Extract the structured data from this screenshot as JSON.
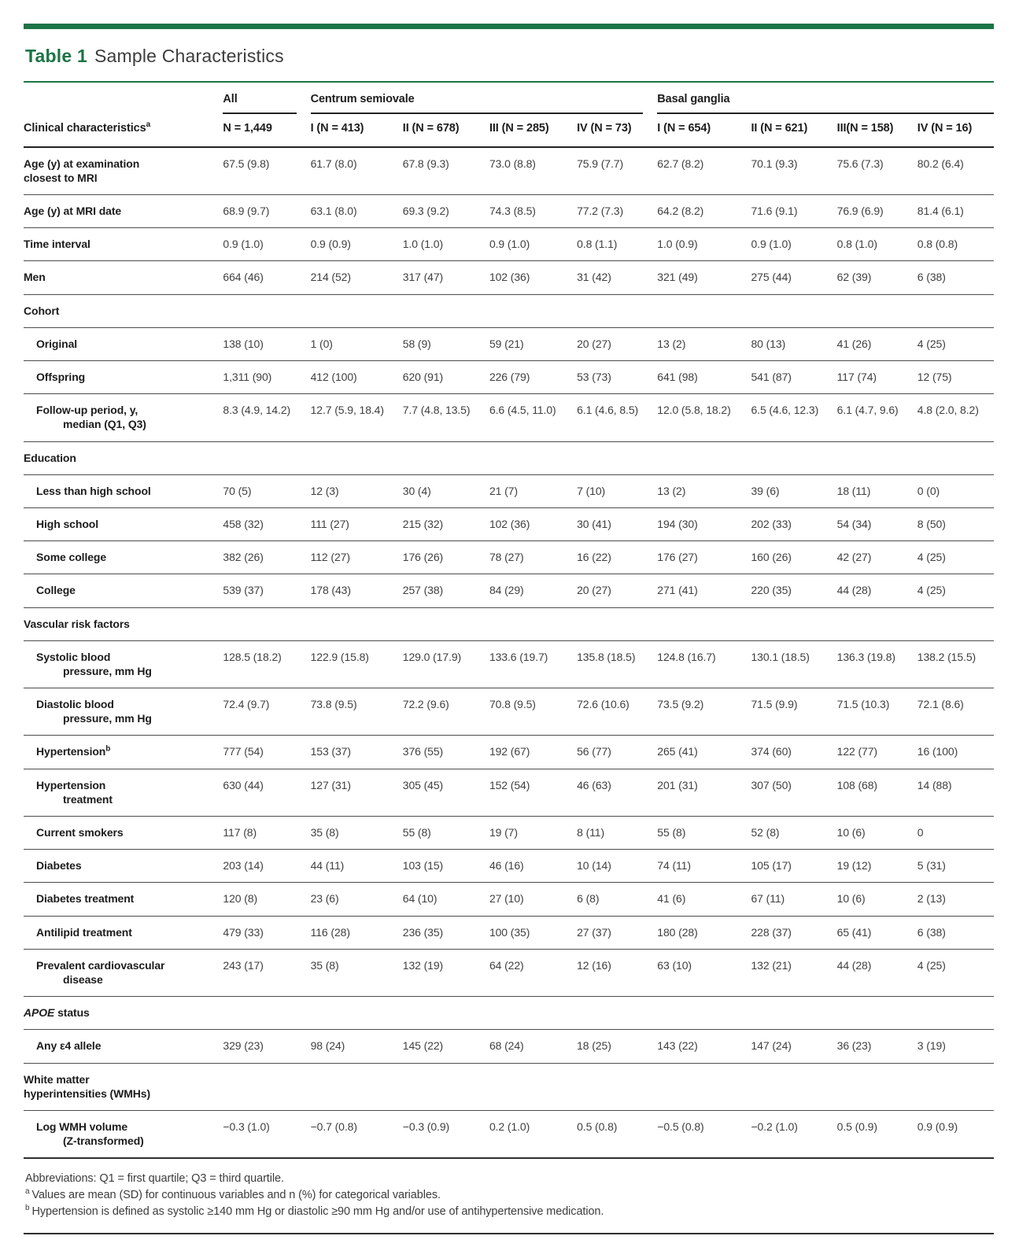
{
  "accent_color": "#1d7446",
  "table_label": "Table 1",
  "table_title": "Sample Characteristics",
  "header": {
    "stub_label": "Clinical characteristics",
    "stub_sup": "a",
    "groups": [
      {
        "label": "All",
        "cols": 1
      },
      {
        "label": "Centrum semiovale",
        "cols": 4
      },
      {
        "label": "Basal ganglia",
        "cols": 4
      }
    ],
    "columns": [
      "N = 1,449",
      "I (N = 413)",
      "II (N = 678)",
      "III (N = 285)",
      "IV (N = 73)",
      "I (N = 654)",
      "II (N = 621)",
      "III(N = 158)",
      "IV (N = 16)"
    ]
  },
  "rows": [
    {
      "type": "data",
      "indent": false,
      "label": "Age (y) at examination\ncloset to MRI",
      "label_fixed": "Age (y) at examination\nclosest to MRI",
      "values": [
        "67.5 (9.8)",
        "61.7 (8.0)",
        "67.8 (9.3)",
        "73.0 (8.8)",
        "75.9 (7.7)",
        "62.7 (8.2)",
        "70.1 (9.3)",
        "75.6 (7.3)",
        "80.2 (6.4)"
      ]
    },
    {
      "type": "data",
      "indent": false,
      "label": "Age (y) at MRI date",
      "values": [
        "68.9 (9.7)",
        "63.1 (8.0)",
        "69.3 (9.2)",
        "74.3 (8.5)",
        "77.2 (7.3)",
        "64.2 (8.2)",
        "71.6 (9.1)",
        "76.9 (6.9)",
        "81.4 (6.1)"
      ]
    },
    {
      "type": "data",
      "indent": false,
      "label": "Time interval",
      "values": [
        "0.9 (1.0)",
        "0.9 (0.9)",
        "1.0 (1.0)",
        "0.9 (1.0)",
        "0.8 (1.1)",
        "1.0 (0.9)",
        "0.9 (1.0)",
        "0.8 (1.0)",
        "0.8 (0.8)"
      ]
    },
    {
      "type": "data",
      "indent": false,
      "label": "Men",
      "values": [
        "664 (46)",
        "214 (52)",
        "317 (47)",
        "102 (36)",
        "31 (42)",
        "321 (49)",
        "275 (44)",
        "62 (39)",
        "6 (38)"
      ]
    },
    {
      "type": "section",
      "label": "Cohort"
    },
    {
      "type": "data",
      "indent": true,
      "label": "Original",
      "values": [
        "138 (10)",
        "1 (0)",
        "58 (9)",
        "59 (21)",
        "20 (27)",
        "13 (2)",
        "80 (13)",
        "41 (26)",
        "4 (25)"
      ]
    },
    {
      "type": "data",
      "indent": true,
      "label": "Offspring",
      "values": [
        "1,311 (90)",
        "412 (100)",
        "620 (91)",
        "226 (79)",
        "53 (73)",
        "641 (98)",
        "541 (87)",
        "117 (74)",
        "12 (75)"
      ]
    },
    {
      "type": "data",
      "indent": true,
      "label": "Follow-up period, y,\nmedian (Q1, Q3)",
      "values": [
        "8.3 (4.9, 14.2)",
        "12.7 (5.9, 18.4)",
        "7.7 (4.8, 13.5)",
        "6.6 (4.5, 11.0)",
        "6.1 (4.6, 8.5)",
        "12.0 (5.8, 18.2)",
        "6.5 (4.6, 12.3)",
        "6.1 (4.7, 9.6)",
        "4.8 (2.0, 8.2)"
      ]
    },
    {
      "type": "section",
      "label": "Education"
    },
    {
      "type": "data",
      "indent": true,
      "label": "Less than high school",
      "values": [
        "70 (5)",
        "12 (3)",
        "30 (4)",
        "21 (7)",
        "7 (10)",
        "13 (2)",
        "39 (6)",
        "18 (11)",
        "0 (0)"
      ]
    },
    {
      "type": "data",
      "indent": true,
      "label": "High school",
      "values": [
        "458 (32)",
        "111 (27)",
        "215 (32)",
        "102 (36)",
        "30 (41)",
        "194 (30)",
        "202 (33)",
        "54 (34)",
        "8 (50)"
      ]
    },
    {
      "type": "data",
      "indent": true,
      "label": "Some college",
      "values": [
        "382 (26)",
        "112 (27)",
        "176 (26)",
        "78 (27)",
        "16 (22)",
        "176 (27)",
        "160 (26)",
        "42 (27)",
        "4 (25)"
      ]
    },
    {
      "type": "data",
      "indent": true,
      "label": "College",
      "values": [
        "539 (37)",
        "178 (43)",
        "257 (38)",
        "84 (29)",
        "20 (27)",
        "271 (41)",
        "220 (35)",
        "44 (28)",
        "4 (25)"
      ]
    },
    {
      "type": "section",
      "label": "Vascular risk factors"
    },
    {
      "type": "data",
      "indent": true,
      "label": "Systolic blood\npressure, mm Hg",
      "values": [
        "128.5 (18.2)",
        "122.9 (15.8)",
        "129.0 (17.9)",
        "133.6 (19.7)",
        "135.8 (18.5)",
        "124.8 (16.7)",
        "130.1 (18.5)",
        "136.3 (19.8)",
        "138.2 (15.5)"
      ]
    },
    {
      "type": "data",
      "indent": true,
      "label": "Diastolic blood\npressure, mm Hg",
      "values": [
        "72.4 (9.7)",
        "73.8 (9.5)",
        "72.2 (9.6)",
        "70.8 (9.5)",
        "72.6 (10.6)",
        "73.5 (9.2)",
        "71.5 (9.9)",
        "71.5 (10.3)",
        "72.1 (8.6)"
      ]
    },
    {
      "type": "data",
      "indent": true,
      "label": "Hypertension",
      "sup": "b",
      "values": [
        "777 (54)",
        "153 (37)",
        "376 (55)",
        "192 (67)",
        "56 (77)",
        "265 (41)",
        "374 (60)",
        "122 (77)",
        "16 (100)"
      ]
    },
    {
      "type": "data",
      "indent": true,
      "label": "Hypertension\ntreatment",
      "values": [
        "630 (44)",
        "127 (31)",
        "305 (45)",
        "152 (54)",
        "46 (63)",
        "201 (31)",
        "307 (50)",
        "108 (68)",
        "14 (88)"
      ]
    },
    {
      "type": "data",
      "indent": true,
      "label": "Current smokers",
      "values": [
        "117 (8)",
        "35 (8)",
        "55 (8)",
        "19 (7)",
        "8 (11)",
        "55 (8)",
        "52 (8)",
        "10 (6)",
        "0"
      ]
    },
    {
      "type": "data",
      "indent": true,
      "label": "Diabetes",
      "values": [
        "203 (14)",
        "44 (11)",
        "103 (15)",
        "46 (16)",
        "10 (14)",
        "74 (11)",
        "105 (17)",
        "19 (12)",
        "5 (31)"
      ]
    },
    {
      "type": "data",
      "indent": true,
      "label": "Diabetes treatment",
      "values": [
        "120 (8)",
        "23 (6)",
        "64 (10)",
        "27 (10)",
        "6 (8)",
        "41 (6)",
        "67 (11)",
        "10 (6)",
        "2 (13)"
      ]
    },
    {
      "type": "data",
      "indent": true,
      "label": "Antilipid treatment",
      "values": [
        "479 (33)",
        "116 (28)",
        "236 (35)",
        "100 (35)",
        "27 (37)",
        "180 (28)",
        "228 (37)",
        "65 (41)",
        "6 (38)"
      ]
    },
    {
      "type": "data",
      "indent": true,
      "label": "Prevalent cardiovascular\ndisease",
      "values": [
        "243 (17)",
        "35 (8)",
        "132 (19)",
        "64 (22)",
        "12 (16)",
        "63 (10)",
        "132 (21)",
        "44 (28)",
        "4 (25)"
      ]
    },
    {
      "type": "section",
      "label_italic": "APOE",
      "label": " status"
    },
    {
      "type": "data",
      "indent": true,
      "label": "Any ε4 allele",
      "values": [
        "329 (23)",
        "98 (24)",
        "145 (22)",
        "68 (24)",
        "18 (25)",
        "143 (22)",
        "147 (24)",
        "36 (23)",
        "3 (19)"
      ]
    },
    {
      "type": "section",
      "label": "White matter\nhyperintensities (WMHs)"
    },
    {
      "type": "data",
      "indent": true,
      "label": "Log WMH volume\n(Z-transformed)",
      "values": [
        "−0.3 (1.0)",
        "−0.7 (0.8)",
        "−0.3 (0.9)",
        "0.2 (1.0)",
        "0.5 (0.8)",
        "−0.5 (0.8)",
        "−0.2 (1.0)",
        "0.5 (0.9)",
        "0.9 (0.9)"
      ]
    }
  ],
  "footnotes": [
    {
      "sup": "",
      "text": "Abbreviations: Q1 = first quartile; Q3 = third quartile."
    },
    {
      "sup": "a",
      "text": "Values are mean (SD) for continuous variables and n (%) for categorical variables."
    },
    {
      "sup": "b",
      "text": "Hypertension is defined as systolic ≥140 mm Hg or diastolic ≥90 mm Hg and/or use of antihypertensive medication."
    }
  ]
}
